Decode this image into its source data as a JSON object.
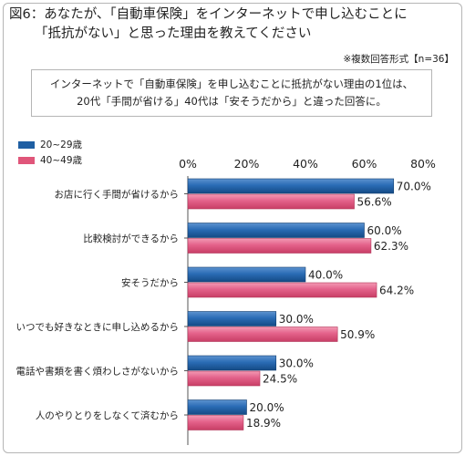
{
  "title": {
    "line1": "図6：あなたが、「自動車保険」をインターネットで申し込むことに",
    "line2": "「抵抗がない」と思った理由を教えてください"
  },
  "note": "※複数回答形式【n=36】",
  "summary": {
    "line1": "インターネットで「自動車保険」を申し込むことに抵抗がない理由の1位は、",
    "line2": "20代「手間が省ける」40代は「安そうだから」と違った回答に。"
  },
  "chart_data": {
    "type": "bar",
    "orientation": "horizontal",
    "categories": [
      "お店に行く手間が省けるから",
      "比較検討ができるから",
      "安そうだから",
      "いつでも好きなときに申し込めるから",
      "電話や書類を書く煩わしさがないから",
      "人のやりとりをしなくて済むから"
    ],
    "series": [
      {
        "name": "20~29歳",
        "color": "#1f5fa3",
        "values": [
          70.0,
          60.0,
          40.0,
          30.0,
          30.0,
          20.0
        ]
      },
      {
        "name": "40~49歳",
        "color": "#e0567a",
        "values": [
          56.6,
          62.3,
          64.2,
          50.9,
          24.5,
          18.9
        ]
      }
    ],
    "value_labels": [
      [
        "70.0%",
        "60.0%",
        "40.0%",
        "30.0%",
        "30.0%",
        "20.0%"
      ],
      [
        "56.6%",
        "62.3%",
        "64.2%",
        "50.9%",
        "24.5%",
        "18.9%"
      ]
    ],
    "xticks": [
      "0%",
      "20%",
      "40%",
      "60%",
      "80%"
    ],
    "xlim": [
      0,
      80
    ],
    "grid": false,
    "legend": "top-left"
  }
}
